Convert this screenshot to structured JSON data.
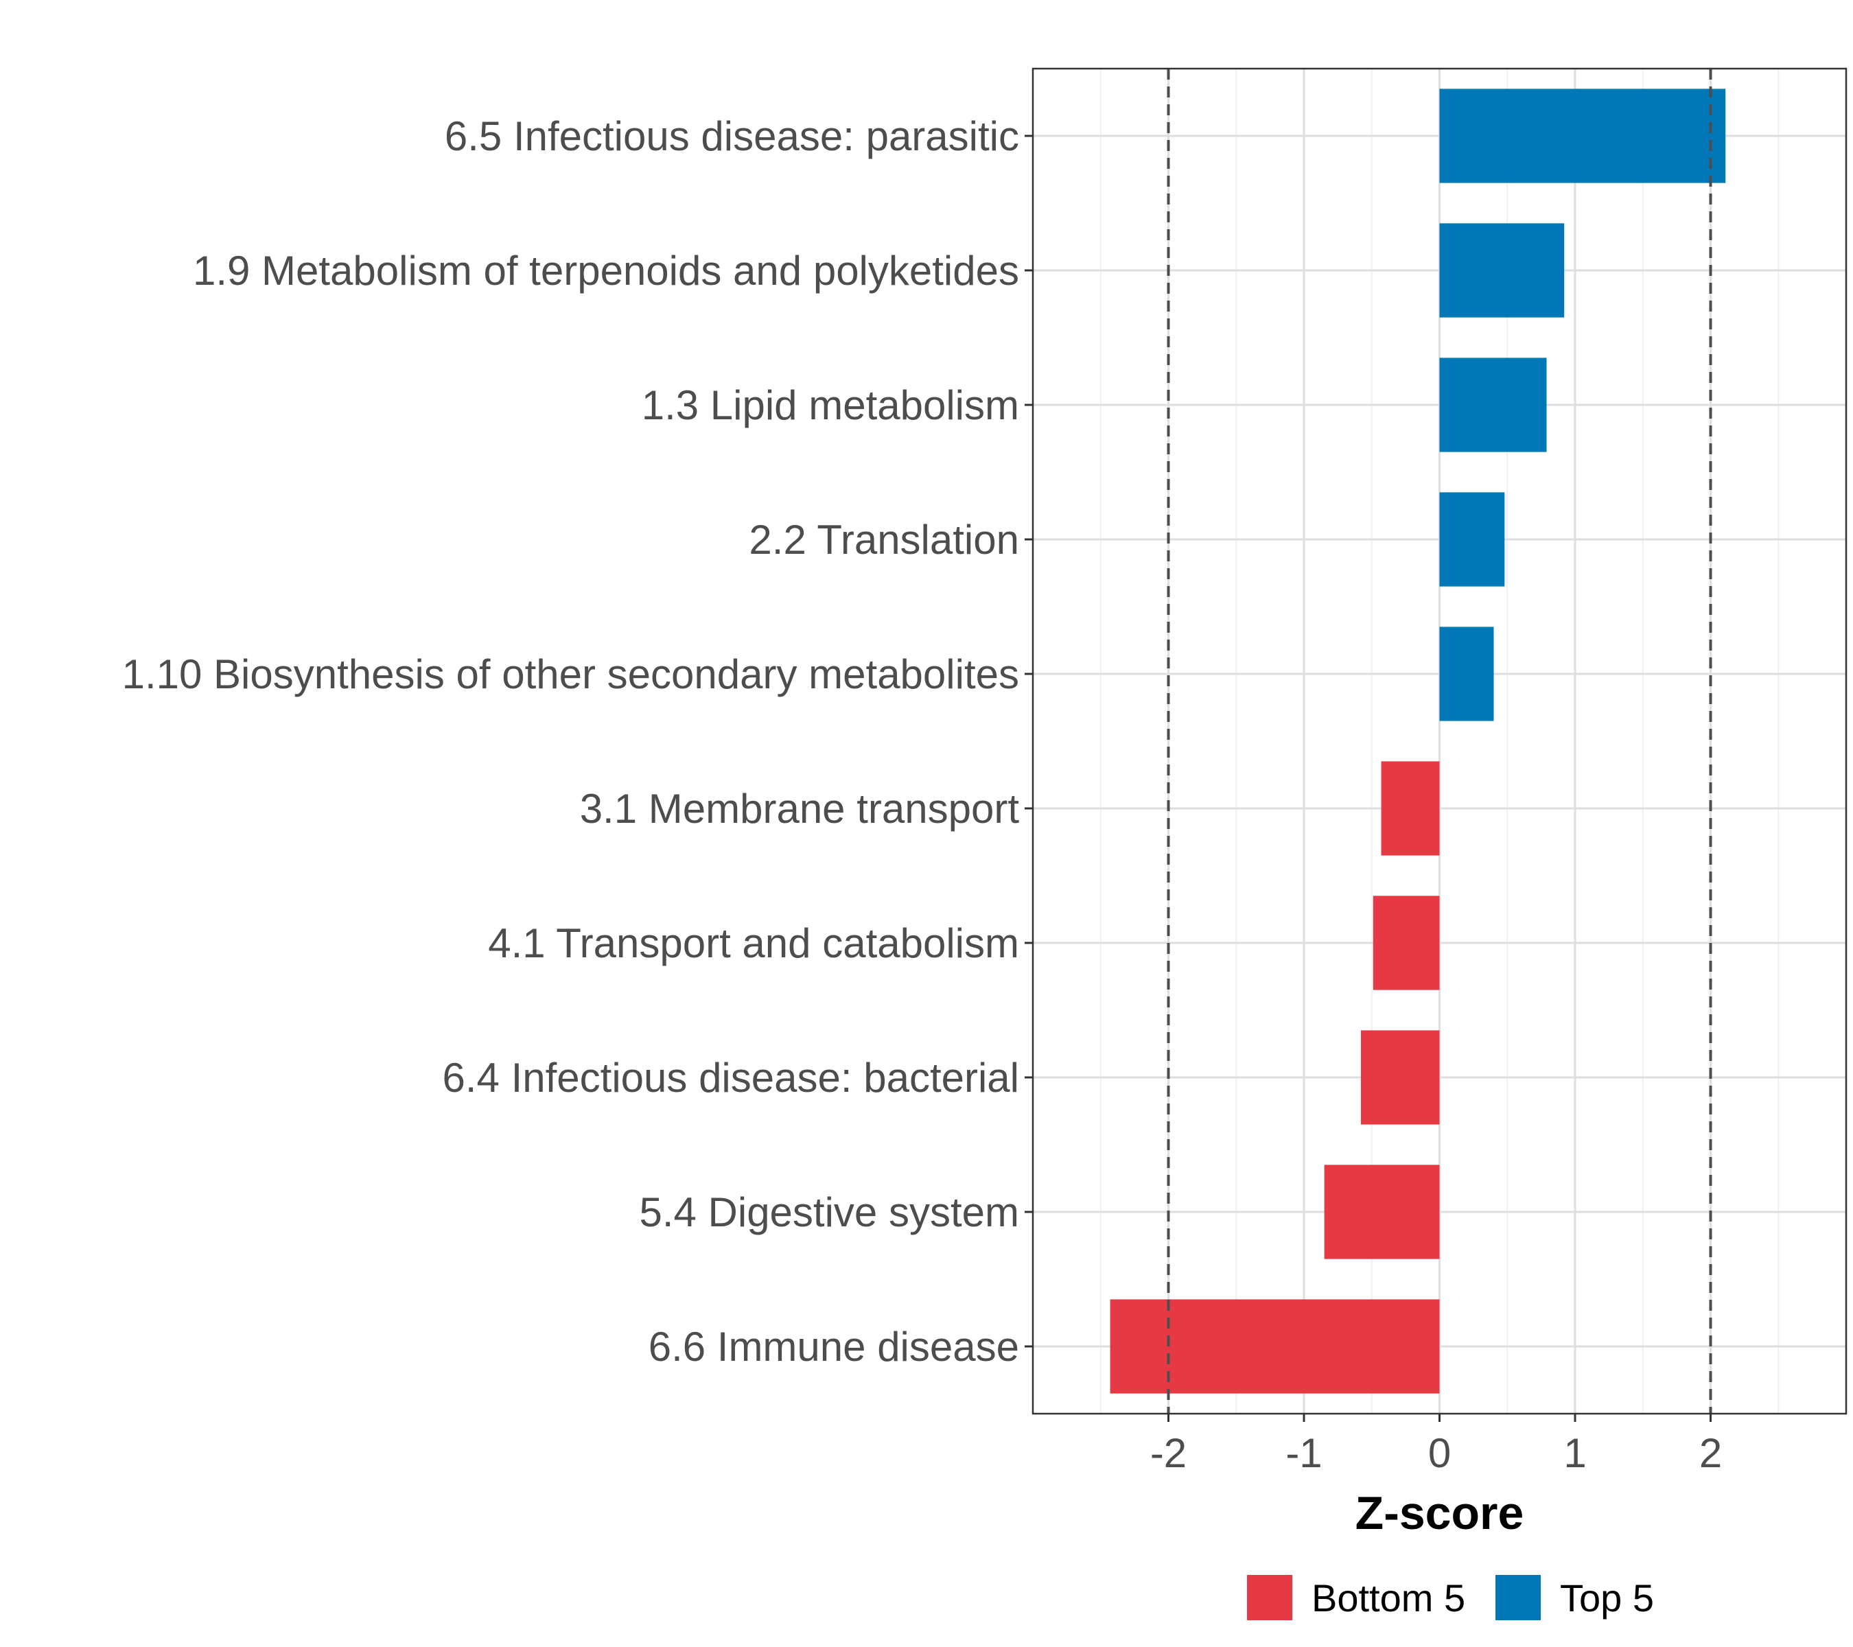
{
  "chart_data": {
    "type": "bar",
    "orientation": "horizontal",
    "categories": [
      "6.5 Infectious disease: parasitic",
      "1.9 Metabolism of terpenoids and polyketides",
      "1.3 Lipid metabolism",
      "2.2 Translation",
      "1.10 Biosynthesis of other secondary metabolites",
      "3.1 Membrane transport",
      "4.1 Transport and catabolism",
      "6.4 Infectious disease: bacterial",
      "5.4 Digestive system",
      "6.6 Immune disease"
    ],
    "values": [
      2.11,
      0.92,
      0.79,
      0.48,
      0.4,
      -0.43,
      -0.49,
      -0.58,
      -0.85,
      -2.43
    ],
    "groups": [
      "Top 5",
      "Top 5",
      "Top 5",
      "Top 5",
      "Top 5",
      "Bottom 5",
      "Bottom 5",
      "Bottom 5",
      "Bottom 5",
      "Bottom 5"
    ],
    "xlabel": "Z-score",
    "xlim": [
      -3,
      3
    ],
    "xticks": [
      "-2",
      "-1",
      "0",
      "1",
      "2"
    ],
    "reference_lines": [
      -2,
      2
    ],
    "grid": true,
    "legend": {
      "position": "bottom",
      "entries": [
        {
          "label": "Bottom 5",
          "color": "#e63946"
        },
        {
          "label": "Top 5",
          "color": "#0077b6"
        }
      ]
    }
  }
}
